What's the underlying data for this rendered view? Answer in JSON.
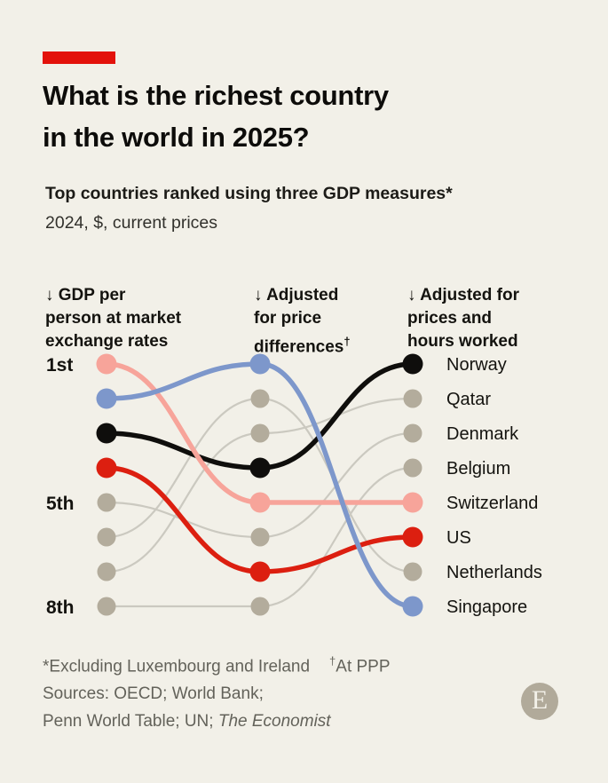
{
  "page": {
    "background": "#f2f0e8",
    "accent_red": "#e3120b"
  },
  "header": {
    "title_line1": "What is the richest country",
    "title_line2": "in the world in 2025?",
    "subtitle_bold": "Top countries ranked using three GDP measures*",
    "subtitle_regular": "2024, $, current prices"
  },
  "chart_data": {
    "type": "bump",
    "title": "Top countries ranked using three GDP measures",
    "measures": [
      {
        "id": "market",
        "label": "↓ GDP per\nperson at market\nexchange rates"
      },
      {
        "id": "ppp",
        "label": "↓ Adjusted\nfor price\ndifferences",
        "label_sup": "†"
      },
      {
        "id": "hours",
        "label": "↓ Adjusted for\nprices and\nhours worked"
      }
    ],
    "rank_axis": {
      "ticks": [
        {
          "text": "1st",
          "row": 1
        },
        {
          "text": "5th",
          "row": 5
        },
        {
          "text": "8th",
          "row": 8
        }
      ]
    },
    "rows": 8,
    "countries": [
      {
        "name": "Norway",
        "highlight": true,
        "color": "#0f0e0c",
        "ranks": [
          3,
          4,
          1
        ]
      },
      {
        "name": "Qatar",
        "highlight": false,
        "color": null,
        "ranks": [
          7,
          3,
          2
        ]
      },
      {
        "name": "Denmark",
        "highlight": false,
        "color": null,
        "ranks": [
          5,
          6,
          3
        ]
      },
      {
        "name": "Belgium",
        "highlight": false,
        "color": null,
        "ranks": [
          8,
          8,
          4
        ]
      },
      {
        "name": "Switzerland",
        "highlight": true,
        "color": "#f7a49a",
        "ranks": [
          1,
          5,
          5
        ]
      },
      {
        "name": "US",
        "highlight": true,
        "color": "#dc1f10",
        "ranks": [
          4,
          7,
          6
        ]
      },
      {
        "name": "Netherlands",
        "highlight": false,
        "color": null,
        "ranks": [
          6,
          2,
          7
        ]
      },
      {
        "name": "Singapore",
        "highlight": true,
        "color": "#7d97cb",
        "ranks": [
          2,
          1,
          8
        ]
      }
    ],
    "colors": {
      "muted_dot": "#b3ac9c",
      "muted_line": "#cbc9c0",
      "label_text": "#14130f",
      "rank_text": "#14130f"
    }
  },
  "footer": {
    "footnote_star": "*Excluding Luxembourg and Ireland",
    "footnote_dagger_mark": "†",
    "footnote_dagger_text": "At PPP",
    "sources_line1": "Sources: OECD; World Bank;",
    "sources_line2_plain": "Penn World Table; UN; ",
    "sources_line2_italic": "The Economist",
    "logo_letter": "E"
  }
}
